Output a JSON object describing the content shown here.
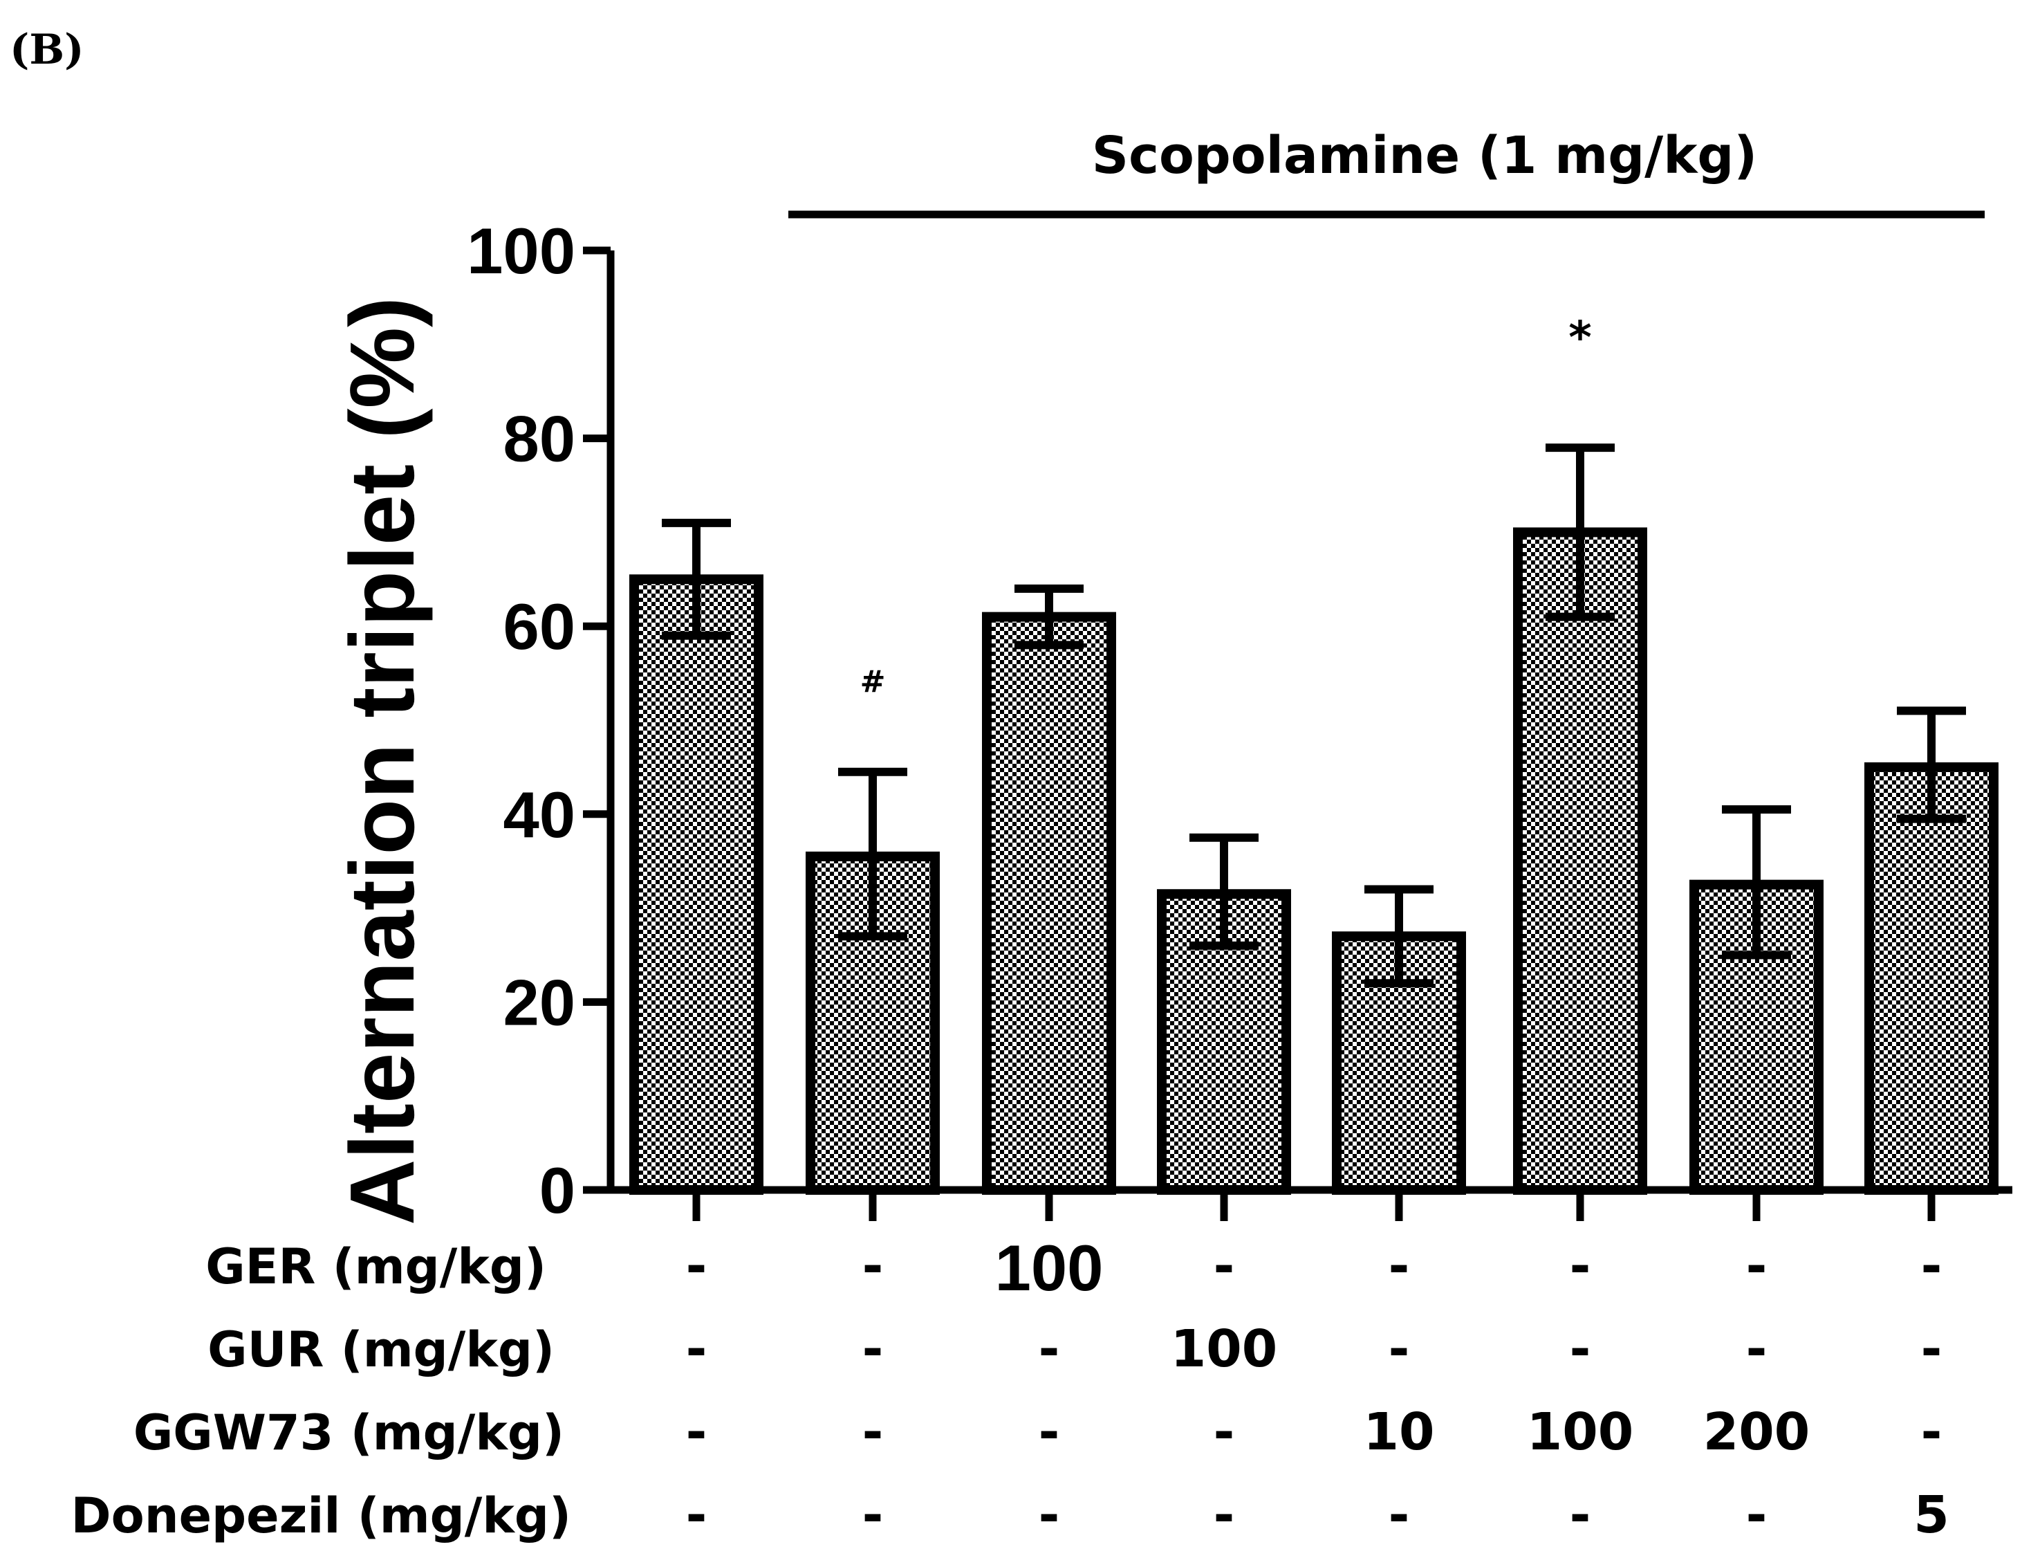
{
  "panel_label": "(B)",
  "chart_data": {
    "type": "bar",
    "ylabel": "Alternation triplet (%)",
    "ylim": [
      0,
      100
    ],
    "yticks": [
      "0",
      "20",
      "40",
      "60",
      "80",
      "100"
    ],
    "treatment_label": "Scopolamine (1 mg/kg)",
    "groups": 8,
    "values": [
      65,
      35.5,
      61,
      31.5,
      27,
      70,
      32.5,
      45
    ],
    "error_upper": [
      71,
      44.5,
      64,
      37.5,
      32,
      79,
      40.5,
      51
    ],
    "error_lower": [
      59,
      27,
      58,
      26,
      22,
      61,
      25,
      39.5
    ],
    "markers": [
      "",
      "#",
      "",
      "",
      "",
      "*",
      "",
      ""
    ],
    "treatment_rows": [
      {
        "label": "GER (mg/kg)",
        "values": [
          "-",
          "-",
          "100",
          "-",
          "-",
          "-",
          "-",
          "-"
        ]
      },
      {
        "label": "GUR (mg/kg)",
        "values": [
          "-",
          "-",
          "-",
          "100",
          "-",
          "-",
          "-",
          "-"
        ]
      },
      {
        "label": "GGW73 (mg/kg)",
        "values": [
          "-",
          "-",
          "-",
          "-",
          "10",
          "100",
          "200",
          "-"
        ]
      },
      {
        "label": "Donepezil (mg/kg)",
        "values": [
          "-",
          "-",
          "-",
          "-",
          "-",
          "-",
          "-",
          "5"
        ]
      }
    ]
  }
}
